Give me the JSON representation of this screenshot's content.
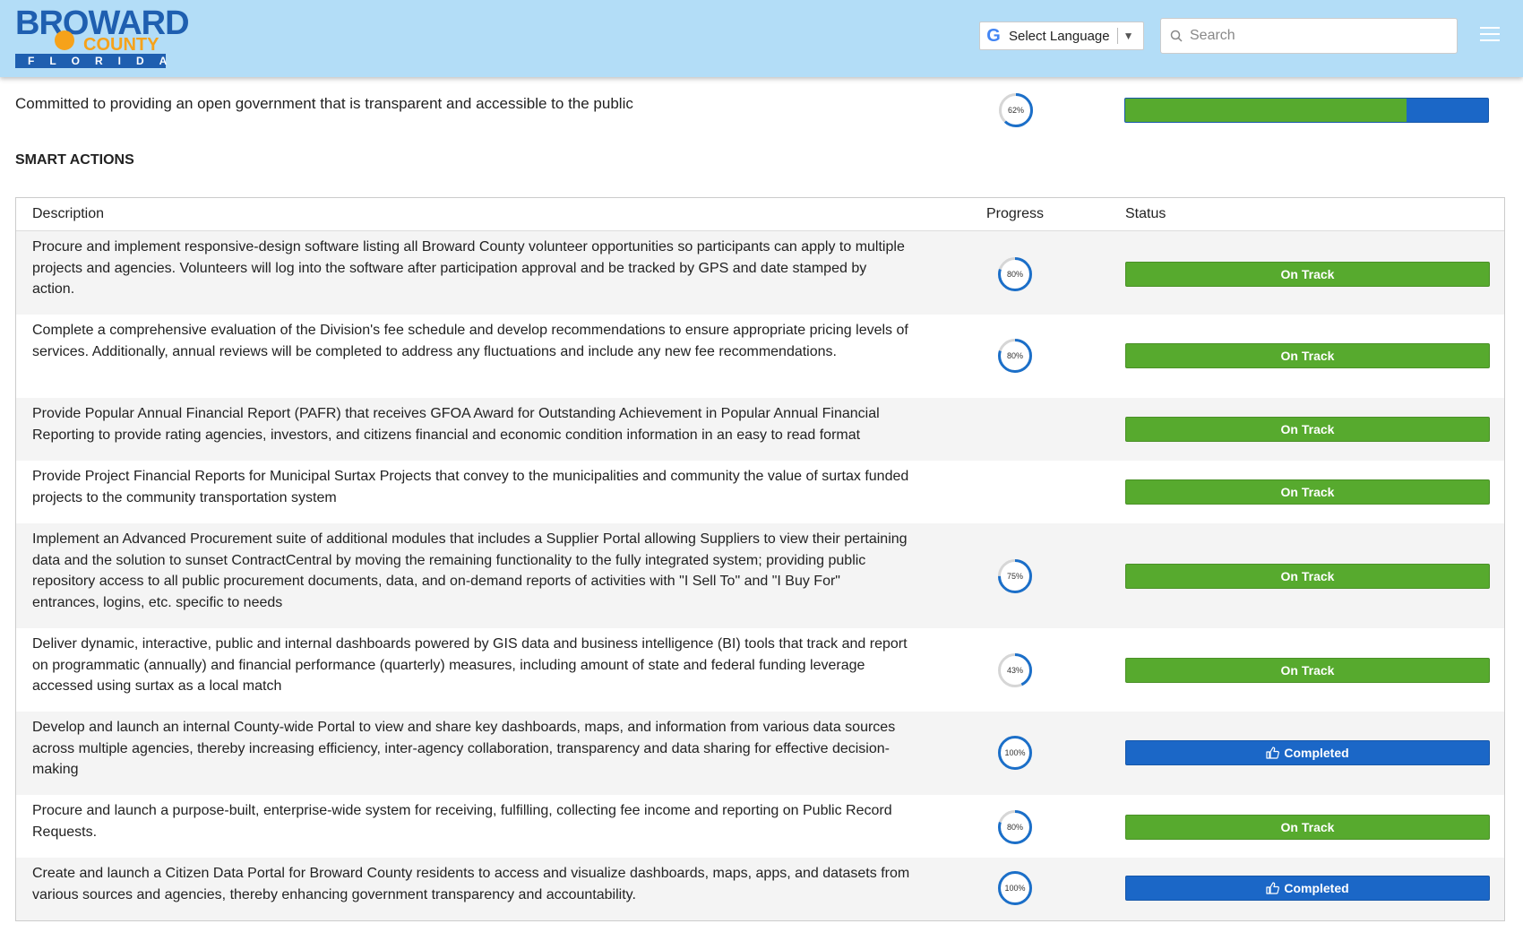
{
  "header": {
    "logo": {
      "line1": "BROWARD",
      "line2": "COUNTY",
      "line3": "FLORIDA"
    },
    "language_label": "Select Language",
    "search_placeholder": "Search"
  },
  "goal": {
    "text": "Committed to providing an open government that is transparent and accessible to the public",
    "progress_label": "62%",
    "progress": 62
  },
  "section_title": "SMART ACTIONS",
  "table": {
    "columns": {
      "description": "Description",
      "progress": "Progress",
      "status": "Status"
    },
    "rows": [
      {
        "description": "Procure and implement responsive-design software listing all Broward County volunteer opportunities so participants can apply to multiple projects and agencies. Volunteers will log into the software after participation approval and be tracked by GPS and date stamped by action.",
        "progress_label": "80%",
        "progress": 80,
        "status": "On Track"
      },
      {
        "description": "Complete a comprehensive evaluation of the Division's fee schedule and develop recommendations to ensure appropriate pricing levels of services. Additionally, annual reviews will be completed to address any fluctuations and include any new fee recommendations.",
        "progress_label": "80%",
        "progress": 80,
        "status": "On Track"
      },
      {
        "description": "Provide Popular Annual Financial Report (PAFR) that receives GFOA Award for Outstanding Achievement in Popular Annual Financial Reporting to provide rating agencies, investors, and citizens financial and economic condition information in an easy to read format",
        "progress_label": "",
        "progress": null,
        "status": "On Track"
      },
      {
        "description": "Provide Project Financial Reports for Municipal Surtax Projects that convey to the municipalities and community the value of surtax funded projects to the community transportation system",
        "progress_label": "",
        "progress": null,
        "status": "On Track"
      },
      {
        "description": "Implement an Advanced Procurement suite of additional modules that includes a Supplier Portal allowing Suppliers to view their pertaining data and the solution to sunset ContractCentral by moving the remaining functionality to the fully integrated system; providing public repository access to all public procurement documents, data, and on-demand reports of activities with \"I Sell To\" and \"I Buy For\" entrances, logins, etc. specific to needs",
        "progress_label": "75%",
        "progress": 75,
        "status": "On Track"
      },
      {
        "description": "Deliver dynamic, interactive, public and internal dashboards powered by GIS data and business intelligence (BI) tools that track and report on programmatic (annually) and financial performance (quarterly) measures, including amount of state and federal funding leverage accessed using surtax as a local match",
        "progress_label": "43%",
        "progress": 43,
        "status": "On Track"
      },
      {
        "description": "Develop and launch an internal County-wide Portal to view and share key dashboards, maps, and information from various data sources across multiple agencies, thereby increasing efficiency, inter-agency collaboration, transparency and data sharing for effective decision-making",
        "progress_label": "100%",
        "progress": 100,
        "status": "Completed"
      },
      {
        "description": "Procure and launch a purpose-built, enterprise-wide system for receiving, fulfilling, collecting fee income and reporting on Public Record Requests.",
        "progress_label": "80%",
        "progress": 80,
        "status": "On Track"
      },
      {
        "description": "Create and launch a Citizen Data Portal for Broward County residents to access and visualize dashboards, maps, apps, and datasets from various sources and agencies, thereby enhancing government transparency and accountability.",
        "progress_label": "100%",
        "progress": 100,
        "status": "Completed"
      }
    ]
  },
  "colors": {
    "on_track": "#57aa2e",
    "completed": "#1b67c7",
    "ring": "#1b6fc9",
    "ring_track": "#d6d6d6"
  }
}
